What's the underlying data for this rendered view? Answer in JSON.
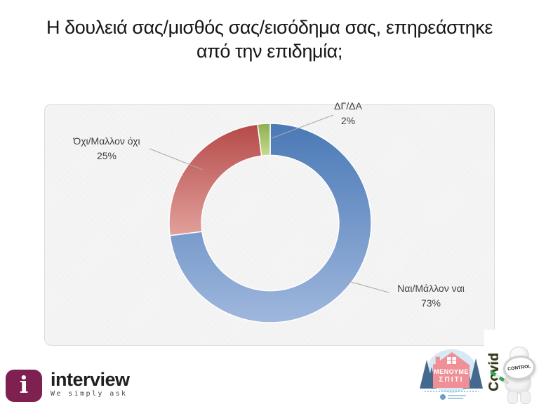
{
  "title": {
    "line1": "Η δουλειά σας/μισθός σας/εισόδημα σας, επηρεάστηκε",
    "line2": "από την επιδημία;"
  },
  "chart_data": {
    "type": "pie",
    "subtype": "donut",
    "title": "",
    "categories": [
      "Ναι/Μάλλον ναι",
      "Όχι/Μαλλον όχι",
      "ΔΓ/ΔΑ"
    ],
    "values": [
      73,
      25,
      2
    ],
    "value_labels": [
      "73%",
      "25%",
      "2%"
    ],
    "unit": "%",
    "colors": [
      "#4f81bd",
      "#c0504d",
      "#9bbb59"
    ],
    "gradients": [
      [
        "#4a79b6",
        "#9fb7dd"
      ],
      [
        "#b54a48",
        "#e2a09c"
      ],
      [
        "#8cb04d",
        "#c6db90"
      ]
    ],
    "start_angle_deg": 0,
    "direction": "clockwise",
    "hole_ratio": 0.68,
    "legend": "none",
    "data_labels": "outside with leader lines",
    "plot_background": "#f3f3f3"
  },
  "logos": {
    "interview": {
      "brand": "interview",
      "tagline": "We simply ask",
      "icon_glyph": "i",
      "brand_color": "#7e2050"
    },
    "stay_home": {
      "line1": "ΜΕΝΟΥΜΕ",
      "line2": "ΣΠΙΤΙ"
    },
    "covid_control": {
      "vertical_text": "Covid",
      "lens_text": "CONTROL"
    }
  }
}
